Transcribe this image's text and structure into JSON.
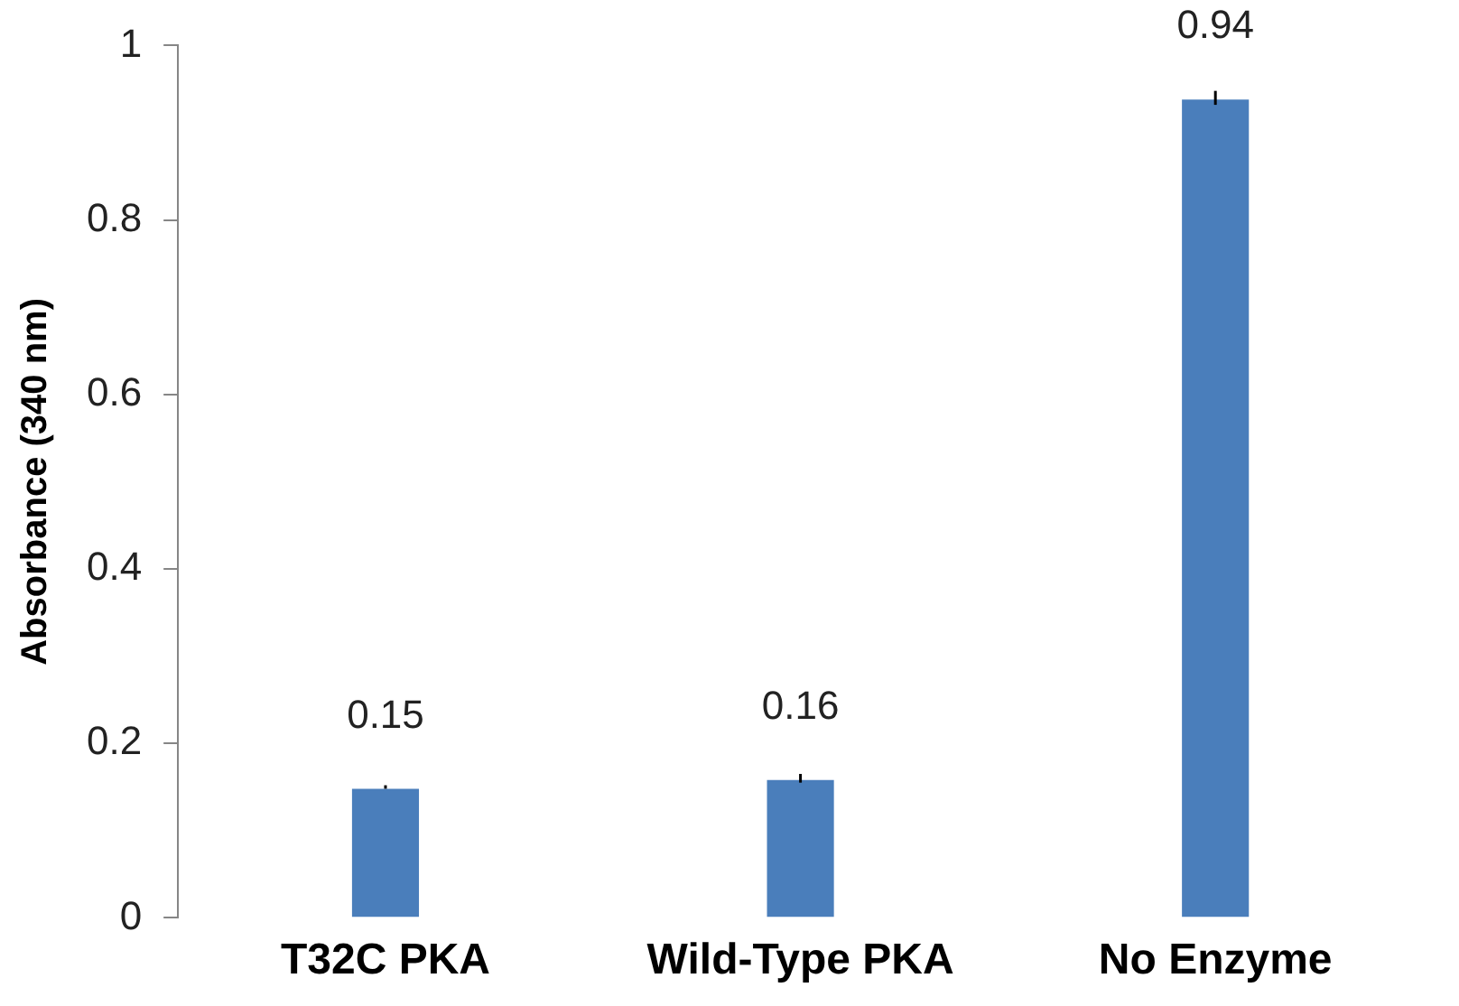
{
  "chart_data": {
    "type": "bar",
    "ylabel": "Absorbance (340 nm)",
    "categories": [
      "T32C PKA",
      "Wild-Type PKA",
      "No Enzyme"
    ],
    "values": [
      0.15,
      0.16,
      0.94
    ],
    "errors": [
      0.002,
      0.005,
      0.008
    ],
    "color": "#4a7ebb",
    "ylim": [
      0,
      1
    ],
    "yticks": [
      0,
      0.2,
      0.4,
      0.6,
      0.8,
      1
    ],
    "data_labels": true,
    "grid": false,
    "legend": false
  }
}
